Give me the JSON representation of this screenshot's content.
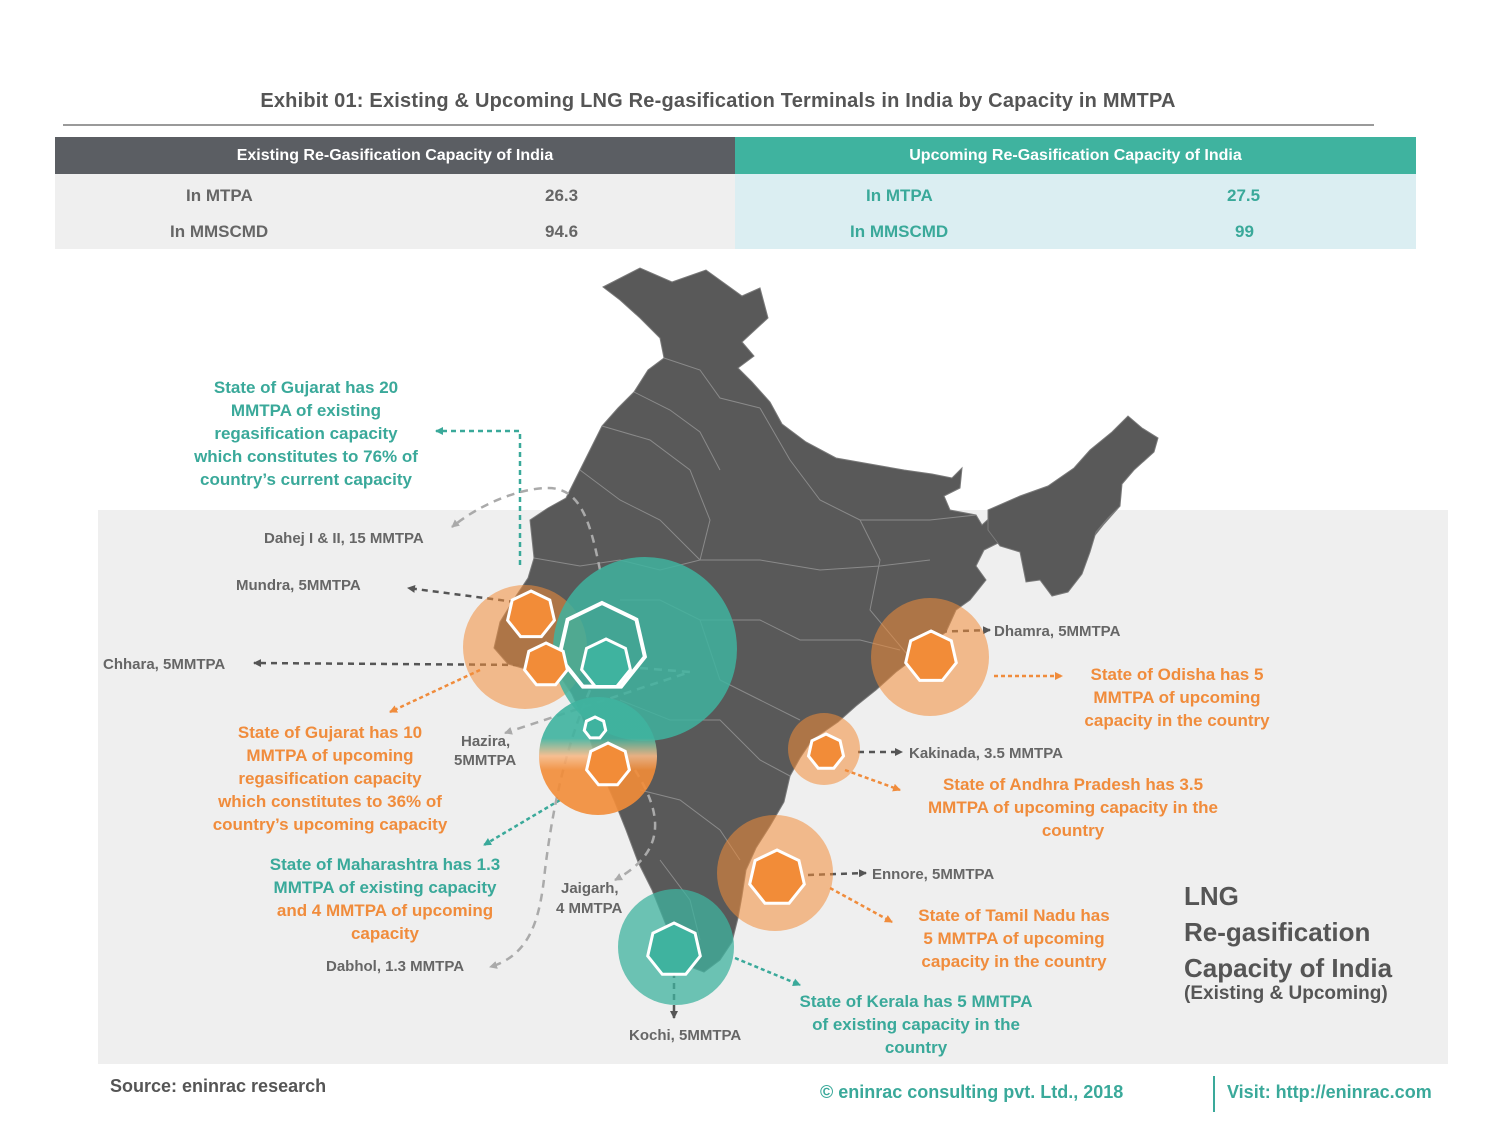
{
  "title": "Exhibit 01: Existing & Upcoming LNG  Re-gasification Terminals in India by Capacity in MMTPA",
  "table": {
    "existing": {
      "header": "Existing Re-Gasification Capacity of India",
      "rows": [
        {
          "label": "In MTPA",
          "value": "26.3"
        },
        {
          "label": "In MMSCMD",
          "value": "94.6"
        }
      ]
    },
    "upcoming": {
      "header": "Upcoming Re-Gasification Capacity of India",
      "rows": [
        {
          "label": "In MTPA",
          "value": "27.5"
        },
        {
          "label": "In MMSCMD",
          "value": "99"
        }
      ]
    }
  },
  "terminals": {
    "dahej": "Dahej I & II, 15 MMTPA",
    "mundra": "Mundra, 5MMTPA",
    "chhara": "Chhara, 5MMTPA",
    "hazira_1": "Hazira,",
    "hazira_2": "5MMTPA",
    "jaigarh_1": "Jaigarh,",
    "jaigarh_2": "4 MMTPA",
    "dabhol": "Dabhol, 1.3 MMTPA",
    "kochi": "Kochi, 5MMTPA",
    "dhamra": "Dhamra, 5MMTPA",
    "kakinada": "Kakinada, 3.5 MMTPA",
    "ennore": "Ennore, 5MMTPA"
  },
  "notes": {
    "gujarat_existing": [
      "State of Gujarat has 20",
      "MMTPA of existing",
      "regasification capacity",
      "which constitutes to 76% of",
      "country’s current capacity"
    ],
    "gujarat_upcoming": [
      "State of Gujarat has 10",
      "MMTPA of upcoming",
      "regasification capacity",
      "which constitutes to 36% of",
      "country’s upcoming capacity"
    ],
    "maharashtra_existing": [
      "State of Maharashtra has 1.3",
      "MMTPA of existing capacity"
    ],
    "maharashtra_upcoming": [
      "and 4 MMTPA of upcoming",
      "capacity"
    ],
    "odisha": [
      "State of Odisha has 5",
      "MMTPA of upcoming",
      "capacity in the country"
    ],
    "andhra": [
      "State of Andhra Pradesh has 3.5",
      "MMTPA of upcoming capacity in the",
      "country"
    ],
    "tamilnadu": [
      "State of Tamil Nadu has",
      "5 MMTPA of upcoming",
      "capacity in the country"
    ],
    "kerala": [
      "State of Kerala has 5 MMTPA",
      "of existing capacity in the",
      "country"
    ]
  },
  "legend": {
    "title_lines": [
      "LNG",
      "Re-gasification",
      "Capacity of India"
    ],
    "subtitle": "(Existing & Upcoming)"
  },
  "footer": {
    "source": "Source: eninrac research",
    "copyright": "© eninrac consulting pvt. Ltd., 2018",
    "visit": "Visit: http://eninrac.com"
  },
  "colors": {
    "existing": "#3fb39f",
    "upcoming": "#f28c38",
    "map": "#595959",
    "header_dark": "#5b5e63"
  }
}
